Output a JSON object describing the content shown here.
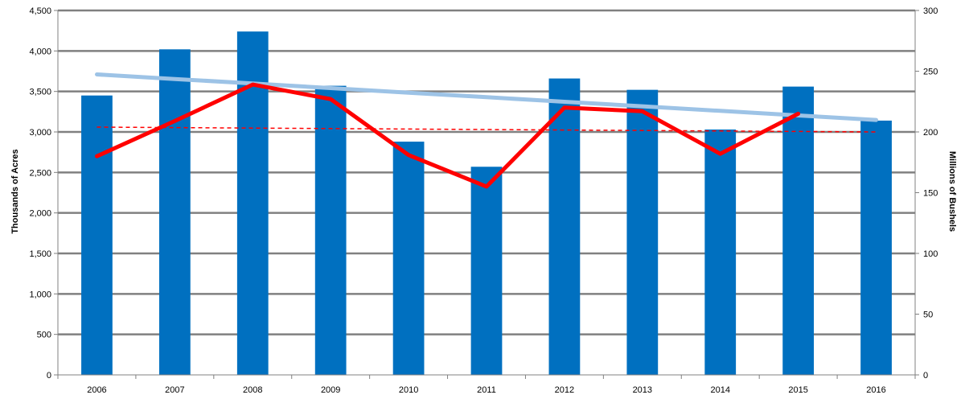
{
  "chart_data": {
    "type": "bar",
    "categories": [
      "2006",
      "2007",
      "2008",
      "2009",
      "2010",
      "2011",
      "2012",
      "2013",
      "2014",
      "2015",
      "2016"
    ],
    "series": [
      {
        "kind": "bar",
        "axis": "left",
        "color": "#0070C0",
        "values": [
          3450,
          4020,
          4240,
          3570,
          2880,
          2570,
          3660,
          3520,
          3030,
          3560,
          3140
        ]
      },
      {
        "kind": "line",
        "axis": "right",
        "color": "#FF0000",
        "values": [
          180,
          209,
          239,
          227,
          181,
          155,
          220,
          217,
          182,
          215,
          null
        ]
      },
      {
        "kind": "trendline",
        "axis": "left",
        "color": "#9DC3E6",
        "values": [
          3710,
          3654,
          3598,
          3541,
          3485,
          3429,
          3373,
          3317,
          3260,
          3204,
          3148
        ]
      },
      {
        "kind": "trendline-dashed",
        "axis": "right",
        "color": "#FF0000",
        "values": [
          204,
          203.6,
          203.2,
          202.8,
          202.4,
          202,
          201.6,
          201.2,
          200.8,
          200.4,
          200
        ]
      }
    ],
    "ylabel": "Thousands of Acres",
    "y2label": "Millions of Bushels",
    "ylim": [
      0,
      4500
    ],
    "y2lim": [
      0,
      300
    ],
    "yticks": [
      "0",
      "500",
      "1,000",
      "1,500",
      "2,000",
      "2,500",
      "3,000",
      "3,500",
      "4,000",
      "4,500"
    ],
    "y2ticks": [
      "0",
      "50",
      "100",
      "150",
      "200",
      "250",
      "300"
    ],
    "grid": true,
    "legend": "none"
  }
}
